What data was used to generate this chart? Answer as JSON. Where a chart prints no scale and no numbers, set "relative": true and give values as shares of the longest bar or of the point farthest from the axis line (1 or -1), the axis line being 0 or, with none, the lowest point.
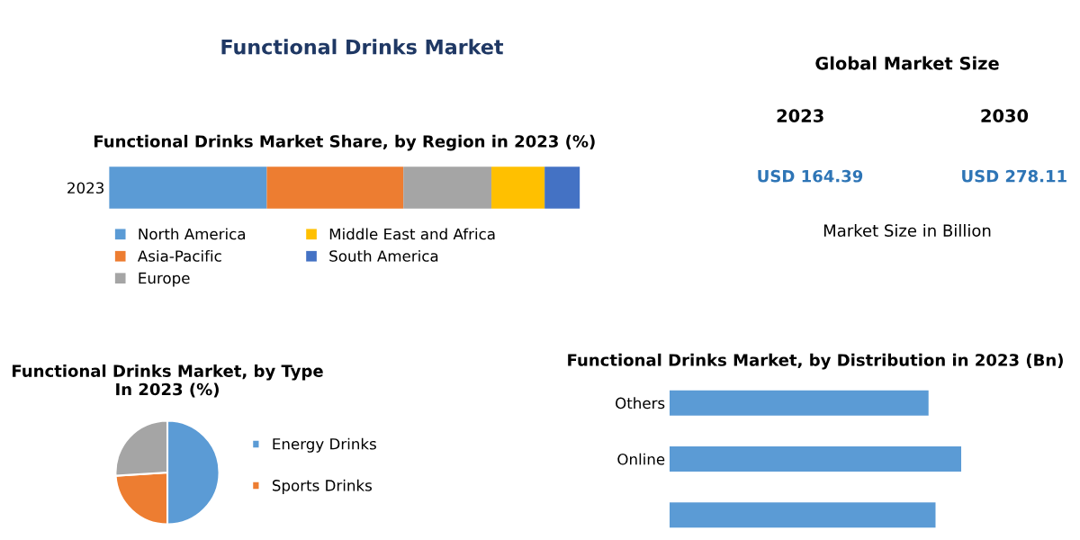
{
  "chart_data": [
    {
      "type": "other",
      "title": "Functional Drinks Market"
    },
    {
      "type": "bar",
      "title": "Functional Drinks Market Share, by Region in 2023 (%)",
      "orientation": "horizontal",
      "stacked": true,
      "relative": true,
      "categories": [
        "2023"
      ],
      "legend": "bottom",
      "series": [
        {
          "name": "North America",
          "color": "#5b9bd5",
          "values": [
            0.335
          ]
        },
        {
          "name": "Asia-Pacific",
          "color": "#ed7d31",
          "values": [
            0.29
          ]
        },
        {
          "name": "Europe",
          "color": "#a5a5a5",
          "values": [
            0.187
          ]
        },
        {
          "name": "Middle East and Africa",
          "color": "#ffc000",
          "values": [
            0.113
          ]
        },
        {
          "name": "South America",
          "color": "#4472c4",
          "values": [
            0.075
          ]
        }
      ]
    },
    {
      "type": "other",
      "title": "Global Market Size",
      "annotations": [
        "2023",
        "2030",
        "USD 164.39",
        "USD 278.11",
        "Market Size in Billion"
      ]
    },
    {
      "type": "pie",
      "title": "Functional Drinks Market, by Type In 2023 (%)",
      "categories": [
        "Energy Drinks",
        "Sports Drinks",
        null
      ],
      "values": [
        50,
        24,
        26
      ],
      "colors": [
        "#5b9bd5",
        "#ed7d31",
        "#a5a5a5"
      ],
      "legend": "right"
    },
    {
      "type": "bar",
      "title": "Functional Drinks Market, by Distribution in 2023 (Bn)",
      "orientation": "horizontal",
      "relative": true,
      "categories": [
        "Others",
        "Online",
        null
      ],
      "values": [
        0.888,
        1,
        0.912
      ],
      "color": "#5b9bd5"
    }
  ]
}
